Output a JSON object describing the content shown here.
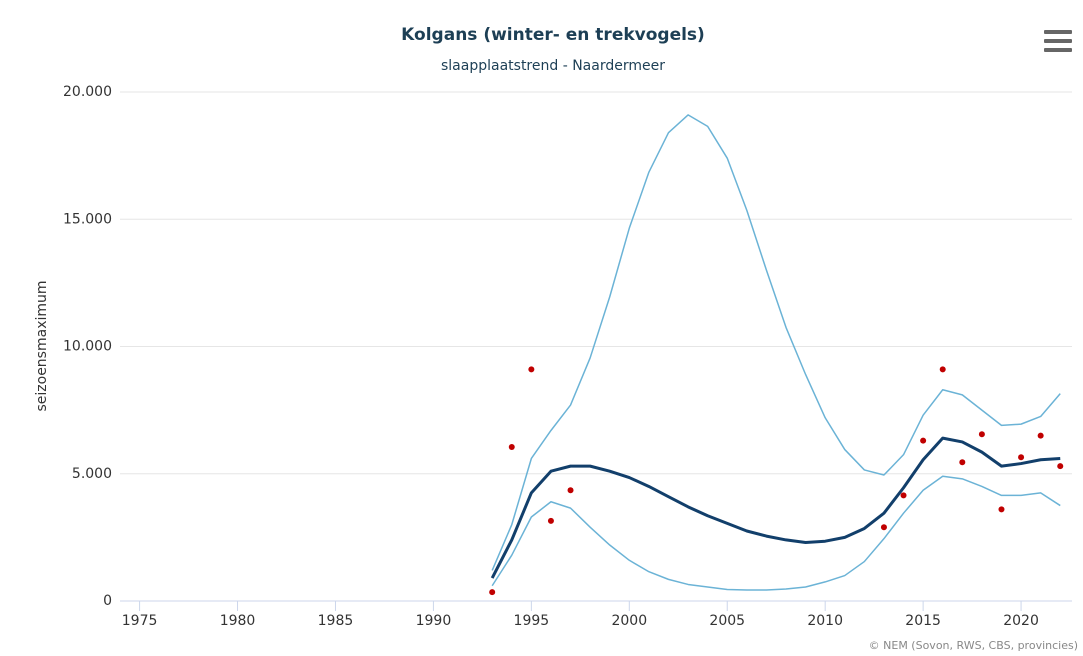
{
  "chart_data": {
    "type": "line",
    "title": "Kolgans (winter- en trekvogels)",
    "subtitle": "slaapplaatstrend - Naardermeer",
    "y_label": "seizoensmaximum",
    "credit": "© NEM (Sovon, RWS, CBS, provincies)",
    "x": [
      1993,
      1994,
      1995,
      1996,
      1997,
      1998,
      1999,
      2000,
      2001,
      2002,
      2003,
      2004,
      2005,
      2006,
      2007,
      2008,
      2009,
      2010,
      2011,
      2012,
      2013,
      2014,
      2015,
      2016,
      2017,
      2018,
      2019,
      2020,
      2021,
      2022
    ],
    "series": [
      {
        "color": "#6bb3d6",
        "width": 1.5,
        "values": [
          1200,
          3000,
          5600,
          6700,
          7700,
          9550,
          11950,
          14650,
          16850,
          18400,
          19100,
          18650,
          17400,
          15350,
          13000,
          10750,
          8900,
          7200,
          5950,
          5150,
          4950,
          5750,
          7300,
          8300,
          8100,
          7500,
          6900,
          6950,
          7250,
          8150
        ]
      },
      {
        "color": "#6bb3d6",
        "width": 1.5,
        "values": [
          600,
          1800,
          3300,
          3900,
          3650,
          2900,
          2200,
          1600,
          1150,
          850,
          650,
          550,
          450,
          430,
          430,
          470,
          550,
          750,
          1000,
          1550,
          2450,
          3450,
          4350,
          4900,
          4800,
          4500,
          4150,
          4150,
          4250,
          3750
        ]
      },
      {
        "color": "#123f6b",
        "width": 3,
        "values": [
          900,
          2400,
          4250,
          5100,
          5300,
          5300,
          5100,
          4850,
          4500,
          4100,
          3700,
          3350,
          3050,
          2750,
          2550,
          2400,
          2300,
          2350,
          2500,
          2850,
          3450,
          4450,
          5550,
          6400,
          6250,
          5850,
          5300,
          5400,
          5550,
          5600
        ]
      },
      {
        "type": "scatter",
        "color": "#c00000",
        "x": [
          1993,
          1994,
          1995,
          1996,
          1997,
          2013,
          2014,
          2015,
          2016,
          2017,
          2018,
          2019,
          2020,
          2021,
          2022
        ],
        "values": [
          350,
          6050,
          9100,
          3150,
          4350,
          2900,
          4150,
          6300,
          9100,
          5450,
          6550,
          3600,
          5650,
          6500,
          5300
        ]
      }
    ],
    "xlim": [
      1974,
      2022.6
    ],
    "xticks": [
      1975,
      1980,
      1985,
      1990,
      1995,
      2000,
      2005,
      2010,
      2015,
      2020
    ],
    "ylim": [
      0,
      20000
    ],
    "yticks": [
      0,
      {
        "value": 5000,
        "label": "5.000"
      },
      {
        "value": 10000,
        "label": "10.000"
      },
      {
        "value": 15000,
        "label": "15.000"
      },
      {
        "value": 20000,
        "label": "20.000"
      }
    ],
    "grid": true
  }
}
